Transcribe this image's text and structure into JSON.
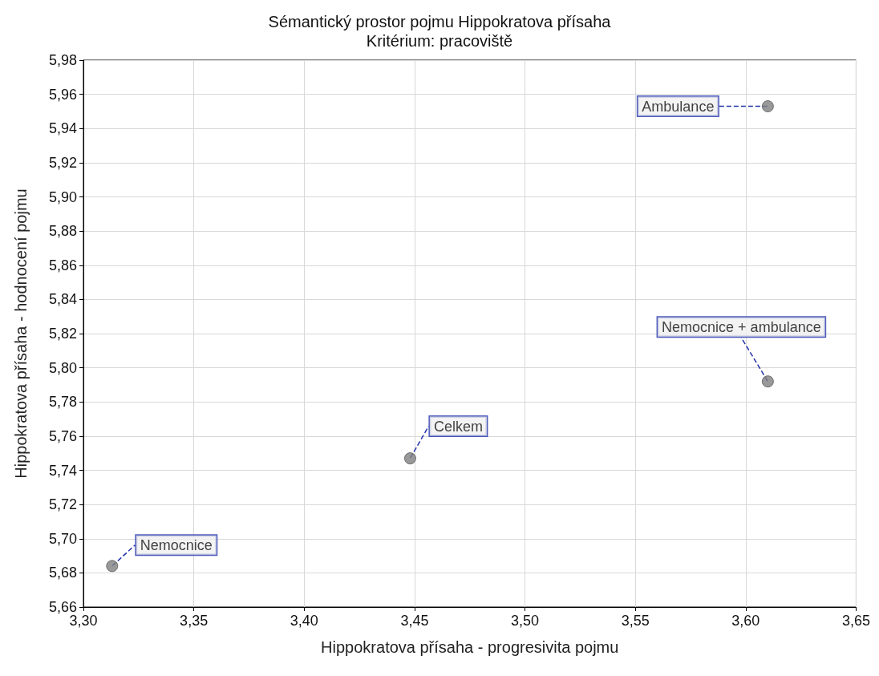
{
  "chart_data": {
    "type": "scatter",
    "title": "Sémantický prostor pojmu Hippokratova přísaha",
    "subtitle": "Kritérium: pracoviště",
    "xlabel": "Hippokratova přísaha - progresivita pojmu",
    "ylabel": "Hippokratova přísaha - hodnocení pojmu",
    "x": [
      3.313,
      3.448,
      3.61,
      3.61
    ],
    "series": [
      {
        "color": "#808080",
        "values": [
          5.684,
          5.747,
          5.953,
          5.792
        ]
      }
    ],
    "annotations": [
      {
        "text": "Nemocnice",
        "x": 3.313,
        "y": 5.684
      },
      {
        "text": "Celkem",
        "x": 3.448,
        "y": 5.747
      },
      {
        "text": "Ambulance",
        "x": 3.61,
        "y": 5.953
      },
      {
        "text": "Nemocnice + ambulance",
        "x": 3.61,
        "y": 5.792
      }
    ],
    "xlim": [
      3.3,
      3.65
    ],
    "xticks": [
      {
        "value": 3.3,
        "label": "3,30"
      },
      {
        "value": 3.35,
        "label": "3,35"
      },
      {
        "value": 3.4,
        "label": "3,40"
      },
      {
        "value": 3.45,
        "label": "3,45"
      },
      {
        "value": 3.5,
        "label": "3,50"
      },
      {
        "value": 3.55,
        "label": "3,55"
      },
      {
        "value": 3.6,
        "label": "3,60"
      },
      {
        "value": 3.65,
        "label": "3,65"
      }
    ],
    "ylim": [
      5.66,
      5.98
    ],
    "yticks": [
      {
        "value": 5.66,
        "label": "5,66"
      },
      {
        "value": 5.68,
        "label": "5,68"
      },
      {
        "value": 5.7,
        "label": "5,70"
      },
      {
        "value": 5.72,
        "label": "5,72"
      },
      {
        "value": 5.74,
        "label": "5,74"
      },
      {
        "value": 5.76,
        "label": "5,76"
      },
      {
        "value": 5.78,
        "label": "5,78"
      },
      {
        "value": 5.8,
        "label": "5,80"
      },
      {
        "value": 5.82,
        "label": "5,82"
      },
      {
        "value": 5.84,
        "label": "5,84"
      },
      {
        "value": 5.86,
        "label": "5,86"
      },
      {
        "value": 5.88,
        "label": "5,88"
      },
      {
        "value": 5.9,
        "label": "5,90"
      },
      {
        "value": 5.92,
        "label": "5,92"
      },
      {
        "value": 5.94,
        "label": "5,94"
      },
      {
        "value": 5.96,
        "label": "5,96"
      },
      {
        "value": 5.98,
        "label": "5,98"
      }
    ],
    "grid": true,
    "marker": "circle"
  }
}
